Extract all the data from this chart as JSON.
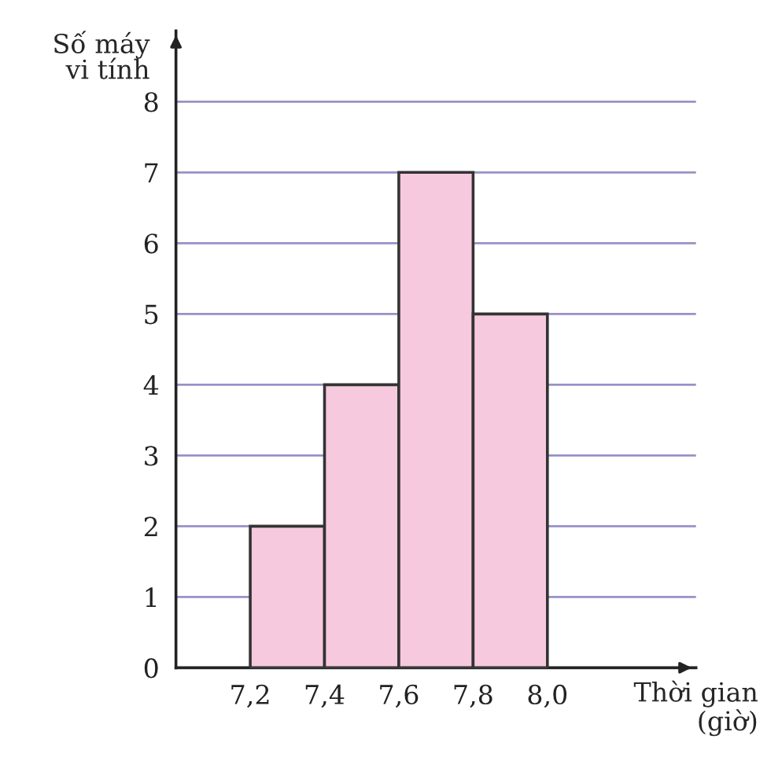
{
  "chart_data": {
    "type": "histogram",
    "ylabel": "Số máy\nvi tính",
    "xlabel": "Thời gian\n(giờ)",
    "bins": [
      7.2,
      7.4,
      7.6,
      7.8,
      8.0
    ],
    "values": [
      2,
      4,
      7,
      5
    ],
    "color": "#f7c9de",
    "xlim": [
      7.0,
      8.4
    ],
    "ylim": [
      0,
      9
    ],
    "xticks": [
      {
        "value": 7.2,
        "label": "7,2"
      },
      {
        "value": 7.4,
        "label": "7,4"
      },
      {
        "value": 7.6,
        "label": "7,6"
      },
      {
        "value": 7.8,
        "label": "7,8"
      },
      {
        "value": 8.0,
        "label": "8,0"
      }
    ],
    "yticks": [
      0,
      1,
      2,
      3,
      4,
      5,
      6,
      7,
      8
    ],
    "grid": "y"
  }
}
